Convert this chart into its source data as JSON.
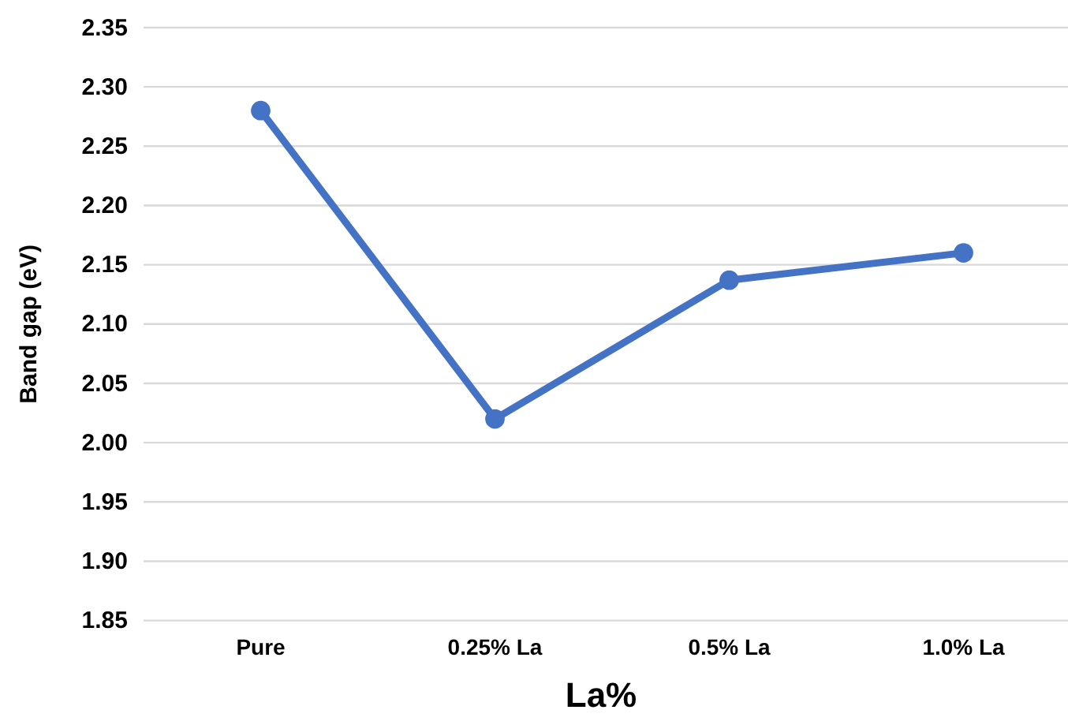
{
  "chart_data": {
    "type": "line",
    "xlabel": "La%",
    "ylabel": "Band gap (eV)",
    "categories": [
      "Pure",
      "0.25% La",
      "0.5% La",
      "1.0% La"
    ],
    "values": [
      2.28,
      2.02,
      2.137,
      2.16
    ],
    "color": "#4472c4",
    "ylim": [
      1.85,
      2.35
    ],
    "yticks": [
      1.85,
      {
        "value": 1.9,
        "label": "1.90"
      },
      1.95,
      {
        "value": 2,
        "label": "2.00"
      },
      2.05,
      {
        "value": 2.1,
        "label": "2.10"
      },
      2.15,
      {
        "value": 2.2,
        "label": "2.20"
      },
      2.25,
      {
        "value": 2.3,
        "label": "2.30"
      },
      2.35
    ],
    "grid": "y",
    "marker": "circle",
    "line_style": "solid"
  }
}
